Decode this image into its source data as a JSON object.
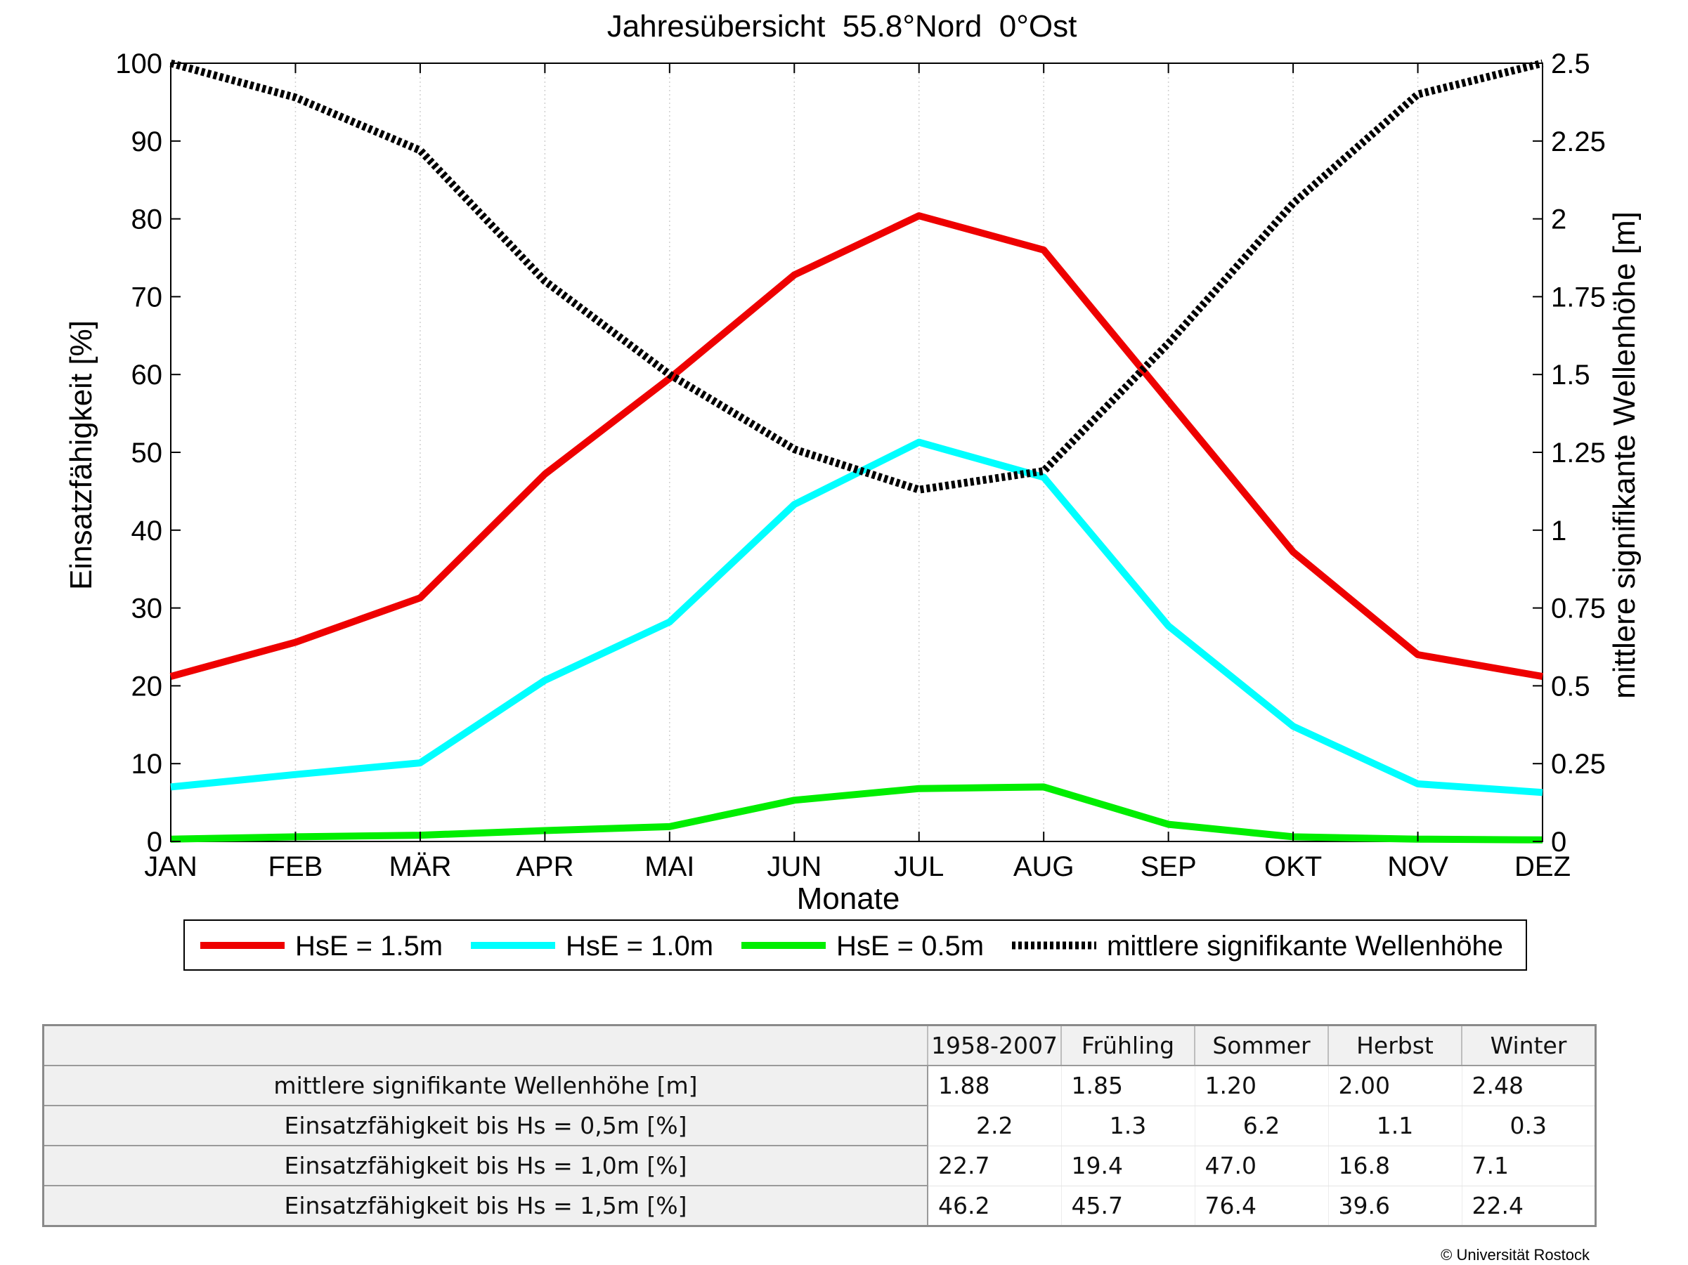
{
  "chart_data": {
    "type": "line",
    "title": "Jahresübersicht  55.8°Nord  0°Ost",
    "xlabel": "Monate",
    "ylabel_left": "Einsatzfähigkeit [%]",
    "ylabel_right": "mittlere signifikante Wellenhöhe [m]",
    "categories": [
      "JAN",
      "FEB",
      "MÄR",
      "APR",
      "MAI",
      "JUN",
      "JUL",
      "AUG",
      "SEP",
      "OKT",
      "NOV",
      "DEZ"
    ],
    "ylim_left": [
      0,
      100
    ],
    "yticks_left": [
      "0",
      "10",
      "20",
      "30",
      "40",
      "50",
      "60",
      "70",
      "80",
      "90",
      "100"
    ],
    "ylim_right": [
      0,
      2.5
    ],
    "yticks_right": [
      "0",
      "0.25",
      "0.5",
      "0.75",
      "1",
      "1.25",
      "1.5",
      "1.75",
      "2",
      "2.25",
      "2.5"
    ],
    "grid": "vertical",
    "legend_position": "bottom",
    "series": [
      {
        "name": "HsE = 1.5m",
        "axis": "left",
        "color": "#ee0000",
        "style": "solid",
        "values": [
          21.2,
          25.6,
          31.3,
          47.2,
          59.5,
          72.8,
          80.4,
          76.0,
          56.6,
          37.2,
          24.0,
          21.2
        ]
      },
      {
        "name": "HsE = 1.0m",
        "axis": "left",
        "color": "#00ffff",
        "style": "solid",
        "values": [
          7.0,
          8.6,
          10.1,
          20.7,
          28.2,
          43.3,
          51.3,
          46.8,
          27.7,
          14.8,
          7.4,
          6.3
        ]
      },
      {
        "name": "HsE = 0.5m",
        "axis": "left",
        "color": "#00ee00",
        "style": "solid",
        "values": [
          0.3,
          0.6,
          0.8,
          1.4,
          1.9,
          5.3,
          6.8,
          7.0,
          2.2,
          0.6,
          0.3,
          0.2
        ]
      },
      {
        "name": "mittlere signifikante Wellenhöhe",
        "axis": "right",
        "color": "#000000",
        "style": "dotted",
        "values": [
          2.5,
          2.39,
          2.22,
          1.8,
          1.5,
          1.26,
          1.13,
          1.19,
          1.6,
          2.05,
          2.4,
          2.5
        ]
      }
    ]
  },
  "table": {
    "headers": [
      "1958-2007",
      "Frühling",
      "Sommer",
      "Herbst",
      "Winter"
    ],
    "rows": [
      {
        "label": "mittlere signifikante Wellenhöhe [m]",
        "values": [
          "1.88",
          "1.85",
          "1.20",
          "2.00",
          "2.48"
        ]
      },
      {
        "label": "Einsatzfähigkeit bis Hs = 0,5m [%]",
        "values": [
          "2.2",
          "1.3",
          "6.2",
          "1.1",
          "0.3"
        ]
      },
      {
        "label": "Einsatzfähigkeit bis Hs = 1,0m [%]",
        "values": [
          "22.7",
          "19.4",
          "47.0",
          "16.8",
          "7.1"
        ]
      },
      {
        "label": "Einsatzfähigkeit bis Hs = 1,5m [%]",
        "values": [
          "46.2",
          "45.7",
          "76.4",
          "39.6",
          "22.4"
        ]
      }
    ]
  },
  "copyright": "© Universität Rostock"
}
